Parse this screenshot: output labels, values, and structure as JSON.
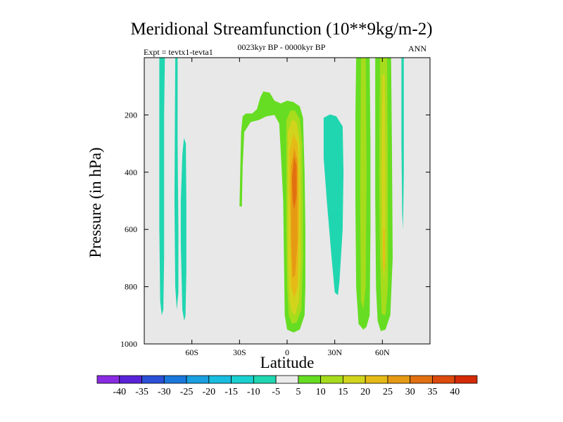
{
  "chart_data": {
    "type": "heatmap",
    "title": "Meridional Streamfunction (10**9kg/m-2)",
    "subtitle": "0023kyr BP - 0000kyr BP",
    "left_label": "Expt = tevtx1-tevta1",
    "right_label": "ANN",
    "xlabel": "Latitude",
    "ylabel": "Pressure (in hPa)",
    "xlim": [
      -90,
      90
    ],
    "ylim": [
      1000,
      0
    ],
    "y_ticks": [
      200,
      400,
      600,
      800,
      1000
    ],
    "y_tick_labels": [
      "200",
      "400",
      "600",
      "800",
      "1000"
    ],
    "x_ticks": [
      -60,
      -30,
      0,
      30,
      60
    ],
    "x_tick_labels": [
      "60S",
      "30S",
      "0",
      "30N",
      "60N"
    ],
    "background": "#e8e8e8",
    "colorbar": {
      "levels": [
        -40,
        -35,
        -30,
        -25,
        -20,
        -15,
        -10,
        -5,
        5,
        10,
        15,
        20,
        25,
        30,
        35,
        40
      ],
      "labels": [
        "-40",
        "-35",
        "-30",
        "-25",
        "-20",
        "-15",
        "-10",
        "-5",
        "5",
        "10",
        "15",
        "20",
        "25",
        "30",
        "35",
        "40"
      ],
      "colors": [
        "#8a2be2",
        "#5a22d8",
        "#2b4fd6",
        "#1a78dc",
        "#1a9fe0",
        "#19bde0",
        "#1ad0d0",
        "#20d6b0",
        "#ebebeb",
        "#66dd22",
        "#a6dc1c",
        "#d2d41c",
        "#e6ba16",
        "#e69a14",
        "#e27010",
        "#dc4a0c",
        "#d42a08"
      ]
    },
    "regions": [
      {
        "name": "neg-band-80S",
        "level": -7,
        "poly": [
          [
            -80.5,
            0
          ],
          [
            -77,
            0
          ],
          [
            -77.5,
            200
          ],
          [
            -77.5,
            500
          ],
          [
            -77.5,
            700
          ],
          [
            -78,
            880
          ],
          [
            -79,
            900
          ],
          [
            -80,
            850
          ],
          [
            -80.5,
            600
          ]
        ]
      },
      {
        "name": "neg-band-70S",
        "level": -7,
        "poly": [
          [
            -70.5,
            0
          ],
          [
            -69,
            0
          ],
          [
            -69,
            300
          ],
          [
            -68.5,
            600
          ],
          [
            -68.5,
            820
          ],
          [
            -69.5,
            880
          ],
          [
            -70.5,
            800
          ],
          [
            -71,
            500
          ]
        ]
      },
      {
        "name": "neg-band-64S",
        "level": -7,
        "poly": [
          [
            -66,
            340
          ],
          [
            -65,
            280
          ],
          [
            -63.8,
            300
          ],
          [
            -63.5,
            500
          ],
          [
            -63.5,
            750
          ],
          [
            -64,
            900
          ],
          [
            -64.8,
            920
          ],
          [
            -66,
            880
          ],
          [
            -67,
            650
          ],
          [
            -67,
            500
          ]
        ]
      },
      {
        "name": "pos-outer-equator",
        "level": 7,
        "poly": [
          [
            -30,
            520
          ],
          [
            -29.5,
            380
          ],
          [
            -29,
            260
          ],
          [
            -28,
            205
          ],
          [
            -26,
            195
          ],
          [
            -22,
            195
          ],
          [
            -19,
            180
          ],
          [
            -17,
            140
          ],
          [
            -15,
            118
          ],
          [
            -11,
            122
          ],
          [
            -8,
            150
          ],
          [
            -4,
            160
          ],
          [
            0,
            150
          ],
          [
            4,
            155
          ],
          [
            8,
            170
          ],
          [
            10,
            210
          ],
          [
            11,
            400
          ],
          [
            11.5,
            600
          ],
          [
            11.5,
            800
          ],
          [
            11,
            900
          ],
          [
            8,
            950
          ],
          [
            4,
            960
          ],
          [
            0,
            950
          ],
          [
            -1.5,
            900
          ],
          [
            -2,
            700
          ],
          [
            -2.5,
            500
          ],
          [
            -4,
            330
          ],
          [
            -5,
            230
          ],
          [
            -8,
            200
          ],
          [
            -13,
            205
          ],
          [
            -18,
            218
          ],
          [
            -23,
            225
          ],
          [
            -27,
            260
          ],
          [
            -28,
            380
          ],
          [
            -28.5,
            520
          ]
        ]
      },
      {
        "name": "pos-equator-10",
        "level": 12,
        "poly": [
          [
            -0.5,
            220
          ],
          [
            2,
            185
          ],
          [
            5,
            185
          ],
          [
            8,
            215
          ],
          [
            9.5,
            300
          ],
          [
            10,
            500
          ],
          [
            10,
            700
          ],
          [
            9,
            880
          ],
          [
            6,
            925
          ],
          [
            3,
            930
          ],
          [
            1,
            900
          ],
          [
            0,
            800
          ],
          [
            -0.5,
            600
          ],
          [
            -0.5,
            400
          ]
        ]
      },
      {
        "name": "pos-equator-15",
        "level": 17,
        "poly": [
          [
            0.5,
            260
          ],
          [
            3,
            215
          ],
          [
            6,
            225
          ],
          [
            8,
            300
          ],
          [
            8.5,
            500
          ],
          [
            8.5,
            700
          ],
          [
            7.5,
            850
          ],
          [
            5,
            900
          ],
          [
            3,
            890
          ],
          [
            1.5,
            850
          ],
          [
            0.5,
            700
          ],
          [
            0.5,
            400
          ]
        ]
      },
      {
        "name": "pos-equator-20",
        "level": 22,
        "poly": [
          [
            1.5,
            330
          ],
          [
            4,
            265
          ],
          [
            6.5,
            300
          ],
          [
            7.5,
            420
          ],
          [
            7.5,
            600
          ],
          [
            6.5,
            800
          ],
          [
            4.5,
            840
          ],
          [
            2.5,
            800
          ],
          [
            2,
            600
          ],
          [
            1.5,
            450
          ]
        ]
      },
      {
        "name": "pos-equator-25",
        "level": 27,
        "poly": [
          [
            2.5,
            380
          ],
          [
            4.5,
            315
          ],
          [
            6.5,
            360
          ],
          [
            6.5,
            500
          ],
          [
            6.5,
            650
          ],
          [
            5,
            760
          ],
          [
            3.5,
            770
          ],
          [
            2.5,
            650
          ]
        ]
      },
      {
        "name": "pos-equator-30",
        "level": 33,
        "poly": [
          [
            3,
            420
          ],
          [
            4.5,
            345
          ],
          [
            6,
            380
          ],
          [
            6,
            480
          ],
          [
            4.5,
            530
          ],
          [
            3.5,
            500
          ]
        ]
      },
      {
        "name": "neg-equator-28N",
        "level": -7,
        "poly": [
          [
            23,
            210
          ],
          [
            27,
            198
          ],
          [
            31,
            205
          ],
          [
            35,
            240
          ],
          [
            35.5,
            400
          ],
          [
            35,
            600
          ],
          [
            33,
            780
          ],
          [
            32,
            830
          ],
          [
            30,
            820
          ],
          [
            28,
            700
          ],
          [
            25,
            500
          ],
          [
            23,
            350
          ]
        ]
      },
      {
        "name": "pos-band-48N",
        "level": 7,
        "poly": [
          [
            43.5,
            0
          ],
          [
            52,
            0
          ],
          [
            52.5,
            300
          ],
          [
            52.5,
            600
          ],
          [
            52,
            900
          ],
          [
            50,
            940
          ],
          [
            48,
            950
          ],
          [
            45,
            930
          ],
          [
            43.5,
            800
          ],
          [
            43,
            500
          ],
          [
            43,
            200
          ]
        ]
      },
      {
        "name": "pos-band-48N-10",
        "level": 12,
        "poly": [
          [
            46.5,
            0
          ],
          [
            49.5,
            0
          ],
          [
            50,
            400
          ],
          [
            49.5,
            800
          ],
          [
            48,
            880
          ],
          [
            46.5,
            850
          ],
          [
            46,
            500
          ]
        ]
      },
      {
        "name": "pos-band-60N",
        "level": 7,
        "poly": [
          [
            55.5,
            0
          ],
          [
            65.5,
            0
          ],
          [
            66,
            300
          ],
          [
            66.5,
            700
          ],
          [
            65,
            900
          ],
          [
            62,
            950
          ],
          [
            59,
            955
          ],
          [
            57,
            920
          ],
          [
            56,
            800
          ],
          [
            55.5,
            500
          ]
        ]
      },
      {
        "name": "pos-band-60N-10",
        "level": 12,
        "poly": [
          [
            58.5,
            0
          ],
          [
            63,
            0
          ],
          [
            63.5,
            400
          ],
          [
            63.5,
            800
          ],
          [
            62,
            900
          ],
          [
            59.5,
            895
          ],
          [
            58.5,
            700
          ],
          [
            58,
            400
          ]
        ]
      },
      {
        "name": "pos-band-60N-15",
        "level": 17,
        "poly": [
          [
            60,
            60
          ],
          [
            61.5,
            60
          ],
          [
            62,
            400
          ],
          [
            62,
            700
          ],
          [
            61,
            780
          ],
          [
            60,
            700
          ],
          [
            59.5,
            400
          ]
        ]
      },
      {
        "name": "pos-band-60N-20",
        "level": 22,
        "poly": [
          [
            60.5,
            600
          ],
          [
            61.5,
            600
          ],
          [
            61.5,
            740
          ],
          [
            60.5,
            740
          ]
        ]
      },
      {
        "name": "neg-band-72N",
        "level": -7,
        "poly": [
          [
            72,
            0
          ],
          [
            73.5,
            0
          ],
          [
            73.5,
            200
          ],
          [
            73.5,
            400
          ],
          [
            73,
            600
          ],
          [
            72.5,
            540
          ],
          [
            72,
            300
          ]
        ]
      }
    ]
  }
}
